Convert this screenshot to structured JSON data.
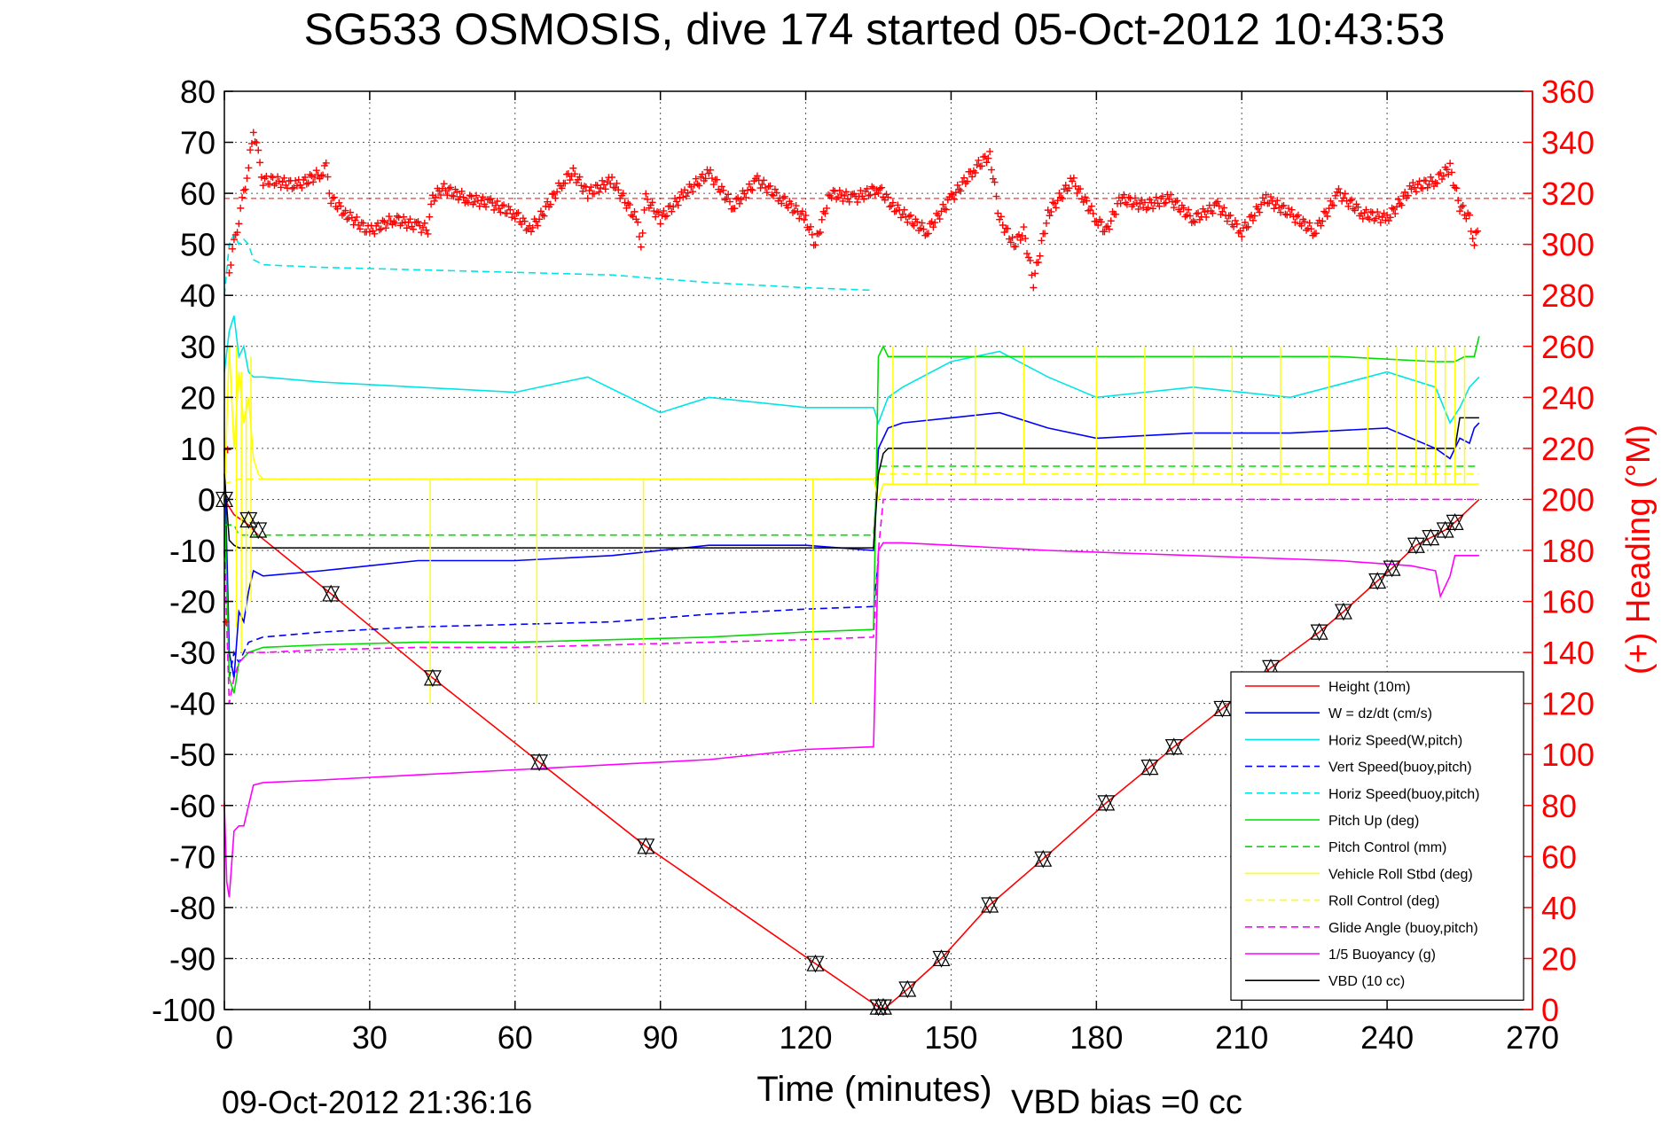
{
  "chart_data": {
    "type": "line",
    "title": "SG533 OSMOSIS, dive 174 started 05-Oct-2012 10:43:53",
    "xlabel": "Time (minutes)",
    "ylabel_right": "(+) Heading (°M)",
    "footer_left": "09-Oct-2012 21:36:16",
    "footer_right": "VBD bias =0 cc",
    "xlim": [
      0,
      270
    ],
    "ylim": [
      -100,
      80
    ],
    "y2lim": [
      0,
      360
    ],
    "x_ticks": [
      "0",
      "30",
      "60",
      "90",
      "120",
      "150",
      "180",
      "210",
      "240",
      "270"
    ],
    "y_ticks": [
      "80",
      "70",
      "60",
      "50",
      "40",
      "30",
      "20",
      "10",
      "0",
      "-10",
      "-20",
      "-30",
      "-40",
      "-50",
      "-60",
      "-70",
      "-80",
      "-90",
      "-100"
    ],
    "y2_ticks": [
      "360",
      "340",
      "320",
      "300",
      "280",
      "260",
      "240",
      "220",
      "200",
      "180",
      "160",
      "140",
      "120",
      "100",
      "80",
      "60",
      "40",
      "20",
      "0"
    ],
    "grid": true,
    "legend_position": "bottom-right",
    "series": [
      {
        "name": "Height (10m)",
        "color": "#ff0000",
        "style": "solid",
        "x": [
          0,
          2,
          5,
          7,
          22,
          43,
          65,
          87,
          122,
          135,
          136,
          141,
          148,
          158,
          169,
          182,
          191,
          196,
          206,
          216,
          226,
          231,
          238,
          241,
          246,
          249,
          252,
          254,
          259
        ],
        "y": [
          0,
          -3,
          -5,
          -7,
          -18.5,
          -35,
          -51.5,
          -68,
          -91,
          -99.5,
          -100,
          -96,
          -90,
          -79.5,
          -70.5,
          -59.5,
          -52.5,
          -48.5,
          -41,
          -33,
          -26,
          -22,
          -16,
          -13.5,
          -9,
          -7.5,
          -6,
          -4.5,
          0
        ]
      },
      {
        "name": "W = dz/dt (cm/s)",
        "color": "#0000ff",
        "style": "solid",
        "x": [
          0,
          1,
          2,
          3,
          4,
          5,
          6,
          8,
          20,
          40,
          60,
          80,
          100,
          120,
          134,
          135,
          136,
          137,
          140,
          150,
          160,
          170,
          180,
          200,
          220,
          240,
          250,
          253,
          255,
          257,
          258,
          259
        ],
        "y": [
          10,
          -30,
          -35,
          -22,
          -24,
          -18,
          -14,
          -15,
          -14,
          -12,
          -12,
          -11,
          -9,
          -9,
          -10,
          10,
          12,
          14,
          15,
          16,
          17,
          14,
          12,
          13,
          13,
          14,
          10,
          8,
          12,
          11,
          14,
          15
        ]
      },
      {
        "name": "Horiz Speed(W,pitch)",
        "color": "#00e5e5",
        "style": "solid",
        "x": [
          0,
          1,
          2,
          3,
          4,
          5,
          6,
          8,
          20,
          40,
          60,
          75,
          90,
          100,
          120,
          134,
          135,
          137,
          140,
          150,
          160,
          170,
          180,
          200,
          220,
          240,
          250,
          253,
          255,
          257,
          259
        ],
        "y": [
          25,
          33,
          36,
          28,
          30,
          25,
          24,
          24,
          23,
          22,
          21,
          24,
          17,
          20,
          18,
          18,
          15,
          20,
          22,
          27,
          29,
          24,
          20,
          22,
          20,
          25,
          22,
          15,
          18,
          22,
          24
        ]
      },
      {
        "name": "Vert Speed(buoy,pitch)",
        "color": "#0000ff",
        "style": "dashed",
        "x": [
          0,
          1,
          2,
          3,
          5,
          8,
          20,
          40,
          60,
          80,
          100,
          120,
          134,
          135
        ],
        "y": [
          -10,
          -35,
          -30,
          -32,
          -28,
          -27,
          -26,
          -25,
          -24.5,
          -24,
          -22.5,
          -21.5,
          -21,
          -12
        ]
      },
      {
        "name": "Horiz Speed(buoy,pitch)",
        "color": "#00e5e5",
        "style": "dashed",
        "x": [
          0,
          1,
          2,
          3,
          4,
          5,
          6,
          8,
          20,
          40,
          60,
          80,
          100,
          120,
          134
        ],
        "y": [
          40,
          50,
          52,
          50,
          51,
          50,
          47,
          46,
          45.5,
          45,
          44.5,
          44,
          42.5,
          41.5,
          41
        ]
      },
      {
        "name": "Pitch Up (deg)",
        "color": "#00dd00",
        "style": "solid",
        "x": [
          0,
          1,
          2,
          3,
          5,
          8,
          20,
          40,
          60,
          80,
          100,
          120,
          134,
          135,
          136,
          137,
          140,
          150,
          170,
          190,
          210,
          230,
          250,
          254,
          256,
          258,
          259
        ],
        "y": [
          0,
          -35,
          -38,
          -32,
          -30,
          -29,
          -28.5,
          -28,
          -28,
          -27.5,
          -27,
          -26,
          -25.5,
          28,
          30,
          28,
          28,
          28,
          28,
          28,
          28,
          28,
          27,
          27,
          28,
          28,
          32
        ]
      },
      {
        "name": "Pitch Control (mm)",
        "color": "#00dd00",
        "style": "dashed",
        "x": [
          0,
          2,
          3,
          134,
          135,
          259
        ],
        "y": [
          -5,
          -5,
          -7,
          -7,
          6.5,
          6.5
        ]
      },
      {
        "name": "Vehicle Roll Stbd (deg)",
        "color": "#ffff00",
        "style": "solid",
        "x": [
          0,
          1,
          2,
          3,
          4,
          5,
          6,
          7,
          8,
          20,
          40,
          60,
          80,
          100,
          120,
          134,
          135,
          136,
          140,
          160,
          180,
          200,
          220,
          240,
          250,
          255,
          259
        ],
        "y": [
          0,
          30,
          10,
          25,
          15,
          20,
          8,
          5,
          4,
          4,
          4,
          4,
          4,
          4,
          4,
          4,
          0,
          3,
          3,
          3,
          3,
          3,
          3,
          3,
          3,
          3,
          3
        ]
      },
      {
        "name": "Roll Control (deg)",
        "color": "#ffff00",
        "style": "dashed",
        "x": [
          0,
          3,
          134,
          135,
          259
        ],
        "y": [
          3,
          4,
          4,
          5,
          5
        ]
      },
      {
        "name": "Glide Angle (buoy,pitch)",
        "color": "#ff00ff",
        "style": "dashed",
        "x": [
          0,
          1,
          2,
          3,
          5,
          8,
          20,
          40,
          60,
          80,
          100,
          120,
          134,
          135,
          136,
          259
        ],
        "y": [
          -10,
          -40,
          -35,
          -32,
          -30,
          -30,
          -29.5,
          -29,
          -29,
          -28.5,
          -28,
          -27.5,
          -27,
          -10,
          0,
          0
        ]
      },
      {
        "name": "1/5 Buoyancy (g)",
        "color": "#ff00ff",
        "style": "solid",
        "x": [
          0,
          0.5,
          1,
          2,
          3,
          4,
          5,
          6,
          8,
          20,
          40,
          60,
          80,
          100,
          120,
          134,
          135,
          136,
          140,
          150,
          170,
          200,
          230,
          245,
          250,
          251,
          252,
          253,
          254,
          255,
          259
        ],
        "y": [
          -60,
          -75,
          -78,
          -65,
          -64,
          -64,
          -60,
          -56,
          -55.5,
          -55,
          -54,
          -53,
          -52,
          -51,
          -49,
          -48.5,
          -10,
          -8.5,
          -8.5,
          -9,
          -10,
          -11,
          -12,
          -13,
          -14,
          -19,
          -17,
          -15,
          -11,
          -11,
          -11
        ]
      },
      {
        "name": "VBD (10 cc)",
        "color": "#000000",
        "style": "solid",
        "x": [
          0,
          1,
          2,
          3,
          134,
          135,
          136,
          137,
          254,
          255,
          259
        ],
        "y": [
          5,
          -8,
          -9,
          -9.5,
          -9.5,
          5,
          9,
          10,
          10,
          16,
          16
        ]
      }
    ],
    "heading_series": {
      "name": "(+) Heading (°M)",
      "color": "#ff0000",
      "marker": "+",
      "axis": "right",
      "reference": 318,
      "x": [
        0,
        1,
        2,
        3,
        4,
        5,
        6,
        7,
        8,
        10,
        15,
        20,
        21,
        22,
        25,
        30,
        35,
        40,
        42,
        43,
        45,
        50,
        55,
        60,
        63,
        65,
        70,
        72,
        75,
        80,
        85,
        86,
        87,
        90,
        95,
        100,
        105,
        110,
        115,
        120,
        122,
        125,
        130,
        135,
        138,
        140,
        145,
        150,
        155,
        158,
        160,
        163,
        165,
        167,
        170,
        175,
        180,
        182,
        185,
        190,
        195,
        200,
        205,
        210,
        215,
        220,
        225,
        230,
        235,
        240,
        245,
        250,
        253,
        255,
        257,
        258,
        259
      ],
      "y": [
        80,
        290,
        300,
        310,
        320,
        330,
        345,
        335,
        325,
        325,
        323,
        328,
        330,
        318,
        312,
        305,
        310,
        307,
        306,
        318,
        322,
        318,
        316,
        312,
        306,
        310,
        325,
        328,
        320,
        325,
        310,
        300,
        318,
        310,
        320,
        328,
        315,
        325,
        318,
        310,
        300,
        320,
        318,
        322,
        315,
        312,
        305,
        318,
        330,
        335,
        310,
        300,
        305,
        285,
        312,
        325,
        310,
        305,
        318,
        315,
        318,
        310,
        315,
        305,
        318,
        312,
        305,
        320,
        312,
        310,
        322,
        325,
        330,
        315,
        310,
        300,
        308
      ]
    },
    "markers": {
      "symbol": "triangle-pair",
      "x": [
        0,
        5,
        7,
        22,
        43,
        65,
        87,
        122,
        135,
        136,
        141,
        148,
        158,
        169,
        182,
        191,
        196,
        206,
        216,
        226,
        231,
        238,
        241,
        246,
        249,
        252,
        254
      ],
      "y": [
        0,
        -4,
        -6,
        -18.5,
        -35,
        -51.5,
        -68,
        -91,
        -99.5,
        -99.5,
        -96,
        -90,
        -79.5,
        -70.5,
        -59.5,
        -52.5,
        -48.5,
        -41,
        -33,
        -26,
        -22,
        -16,
        -13.5,
        -9,
        -7.5,
        -6,
        -4.5
      ]
    },
    "spikes": {
      "color": "#ffff00",
      "x": [
        2.5,
        3.5,
        4.5,
        5.5,
        42.5,
        64.5,
        86.5,
        121.5,
        138,
        145,
        155,
        165,
        180,
        190,
        200,
        208,
        218,
        228,
        236,
        242,
        246,
        248,
        250,
        252,
        254,
        256
      ],
      "y1": [
        30,
        25,
        20,
        28,
        4,
        4,
        4,
        4,
        3,
        3,
        3,
        3,
        3,
        3,
        3,
        3,
        3,
        3,
        3,
        3,
        3,
        3,
        3,
        3,
        3,
        3
      ],
      "y2": [
        -25,
        -30,
        -22,
        -20,
        -40,
        -40,
        -40,
        -40,
        30,
        30,
        30,
        30,
        30,
        30,
        30,
        30,
        30,
        30,
        30,
        30,
        30,
        30,
        30,
        30,
        30,
        30
      ]
    }
  }
}
